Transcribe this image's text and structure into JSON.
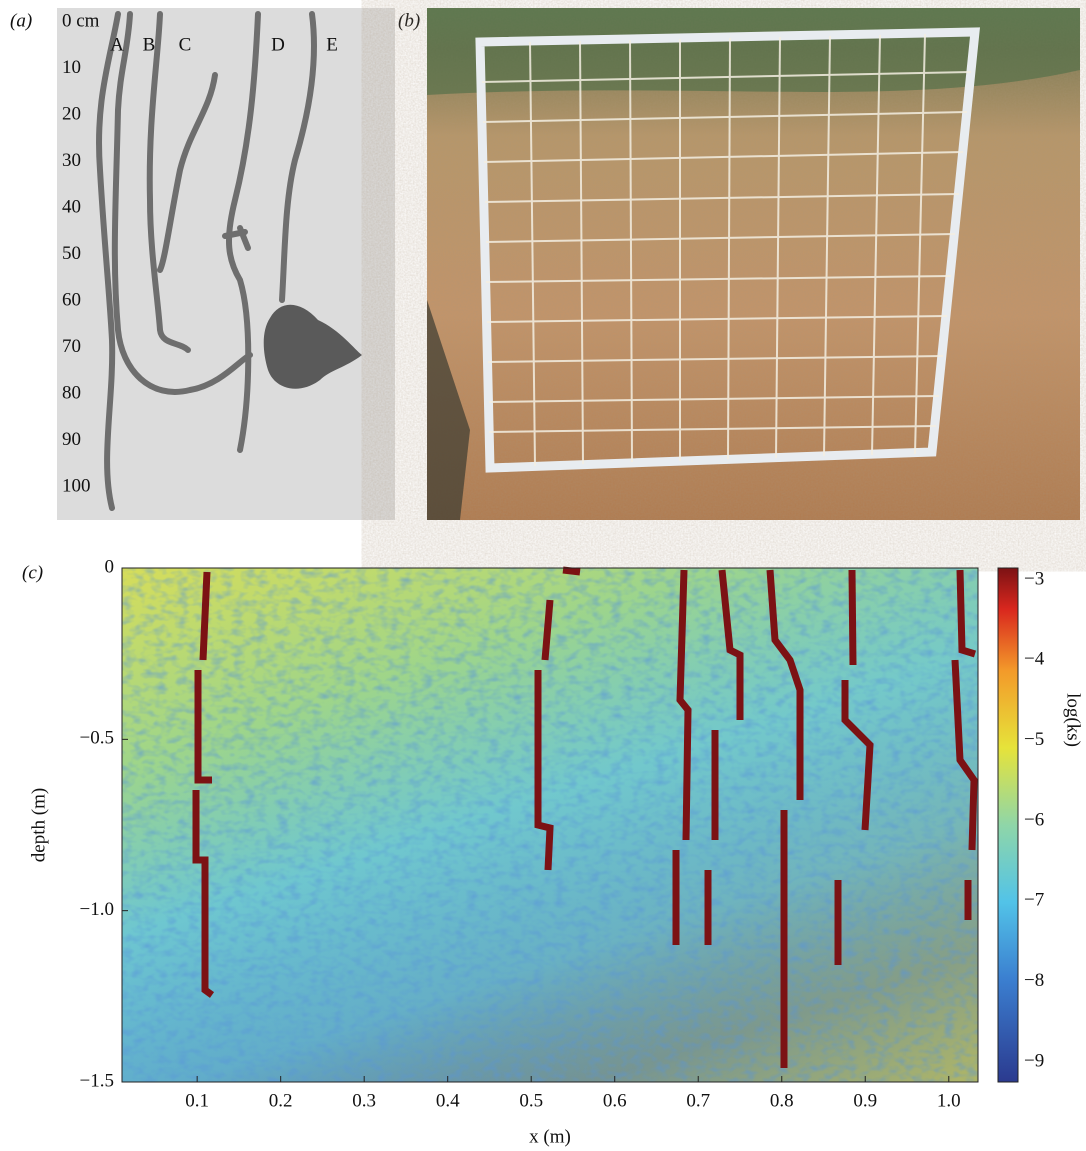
{
  "panel_a": {
    "label": "(a)",
    "depth_labels": [
      "0 cm",
      "10",
      "20",
      "30",
      "40",
      "50",
      "60",
      "70",
      "80",
      "90",
      "100"
    ],
    "root_labels": [
      "A",
      "B",
      "C",
      "D",
      "E"
    ]
  },
  "panel_b": {
    "label": "(b)"
  },
  "chart_data": {
    "type": "heatmap",
    "label": "(c)",
    "xlabel": "x (m)",
    "ylabel": "depth (m)",
    "colorbar_label": "log(ks)",
    "colormap": "jet",
    "xlim": [
      0.01,
      1.035
    ],
    "xticks": [
      0.1,
      0.2,
      0.3,
      0.4,
      0.5,
      0.6,
      0.7,
      0.8,
      0.9,
      {
        "value": 1,
        "label": "1.0"
      }
    ],
    "ylim": [
      -1.5,
      0
    ],
    "yticks": [
      0,
      {
        "value": -0.5,
        "label": "−0.5"
      },
      {
        "value": -1,
        "label": "−1.0"
      },
      {
        "value": -1.5,
        "label": "−1.5"
      }
    ],
    "clim": [
      -9.25,
      -2.85
    ],
    "cticks": [
      {
        "value": -3,
        "label": "−3"
      },
      {
        "value": -4,
        "label": "−4"
      },
      {
        "value": -5,
        "label": "−5"
      },
      {
        "value": -6,
        "label": "−6"
      },
      {
        "value": -7,
        "label": "−7"
      },
      {
        "value": -8,
        "label": "−8"
      },
      {
        "value": -9,
        "label": "−9"
      }
    ]
  }
}
